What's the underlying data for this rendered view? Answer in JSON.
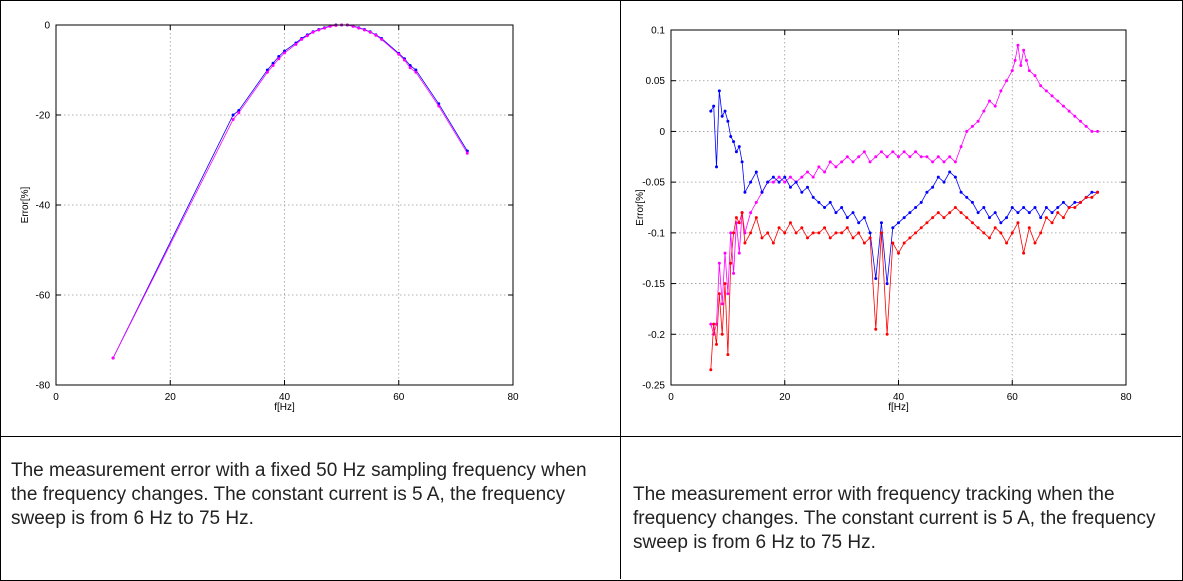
{
  "charts": [
    {
      "caption": "The measurement error with a fixed 50 Hz sampling frequency when the frequency changes. The constant current is 5 A, the frequency sweep is from 6 Hz to 75 Hz."
    },
    {
      "caption": "The measurement error with frequency tracking when the frequency changes. The constant current is 5 A, the frequency sweep is from 6 Hz to 75 Hz."
    }
  ],
  "colors": {
    "blue": "#0000ff",
    "magenta": "#ff00ff",
    "red": "#ff0000"
  },
  "chart_data": [
    {
      "type": "line",
      "xlabel": "f[Hz]",
      "ylabel": "Error[%]",
      "xlim": [
        0,
        80
      ],
      "ylim": [
        -80,
        0
      ],
      "xticks": [
        0,
        20,
        40,
        60,
        80
      ],
      "yticks": [
        0,
        -20,
        -40,
        -60,
        -80
      ],
      "grid": true,
      "series": [
        {
          "color": "#0000ff",
          "x": [
            10,
            31,
            32,
            37,
            38,
            39,
            40,
            42,
            43,
            44,
            45,
            46,
            47,
            48,
            49,
            50,
            51,
            52,
            53,
            54,
            55,
            56,
            57,
            60,
            61,
            62,
            63,
            67,
            72
          ],
          "y": [
            -74,
            -20,
            -19,
            -10,
            -8.5,
            -7,
            -5.8,
            -4,
            -3,
            -2.2,
            -1.5,
            -1,
            -0.6,
            -0.2,
            0,
            0,
            0,
            -0.2,
            -0.6,
            -1,
            -1.5,
            -2.2,
            -3,
            -6.3,
            -7.5,
            -9,
            -10,
            -17.5,
            -28
          ]
        },
        {
          "color": "#ff00ff",
          "x": [
            10,
            31,
            32,
            37,
            38,
            39,
            40,
            42,
            43,
            44,
            45,
            46,
            47,
            48,
            49,
            50,
            51,
            52,
            53,
            54,
            55,
            56,
            57,
            60,
            61,
            62,
            63,
            67,
            72
          ],
          "y": [
            -74,
            -21,
            -19.5,
            -10.5,
            -9,
            -7.5,
            -6.2,
            -4.3,
            -3.2,
            -2.4,
            -1.6,
            -1.1,
            -0.7,
            -0.3,
            -0.1,
            0,
            0,
            -0.3,
            -0.7,
            -1.1,
            -1.6,
            -2.3,
            -3.2,
            -6.5,
            -7.8,
            -9.5,
            -10.5,
            -18,
            -28.5
          ]
        }
      ]
    },
    {
      "type": "line",
      "xlabel": "f[Hz]",
      "ylabel": "Error[%]",
      "xlim": [
        0,
        80
      ],
      "ylim": [
        -0.25,
        0.1
      ],
      "xticks": [
        0,
        20,
        40,
        60,
        80
      ],
      "yticks": [
        0.1,
        0.05,
        0,
        -0.05,
        -0.1,
        -0.15,
        -0.2,
        -0.25
      ],
      "ytick_labels": [
        "0.1",
        "0.05",
        "0",
        "-0.05",
        "-0.1",
        "-0.15",
        "-0.2",
        "-0.25"
      ],
      "grid": true,
      "series": [
        {
          "color": "#ff00ff",
          "x": [
            7,
            7.5,
            8,
            8.5,
            9,
            9.5,
            10,
            10.5,
            11,
            11.5,
            12,
            12.5,
            13,
            14,
            15,
            16,
            17,
            18,
            19,
            20,
            21,
            22,
            23,
            24,
            25,
            26,
            27,
            28,
            29,
            30,
            31,
            32,
            33,
            34,
            35,
            36,
            37,
            38,
            39,
            40,
            41,
            42,
            43,
            44,
            45,
            46,
            47,
            48,
            49,
            50,
            51,
            52,
            53,
            54,
            55,
            56,
            57,
            58,
            59,
            60,
            60.5,
            61,
            61.5,
            62,
            62.5,
            63,
            64,
            65,
            66,
            67,
            68,
            69,
            70,
            71,
            72,
            73,
            74,
            75
          ],
          "y": [
            -0.19,
            -0.2,
            -0.19,
            -0.13,
            -0.17,
            -0.12,
            -0.16,
            -0.1,
            -0.14,
            -0.09,
            -0.12,
            -0.08,
            -0.1,
            -0.08,
            -0.07,
            -0.06,
            -0.05,
            -0.05,
            -0.045,
            -0.05,
            -0.045,
            -0.05,
            -0.045,
            -0.04,
            -0.045,
            -0.035,
            -0.04,
            -0.03,
            -0.035,
            -0.03,
            -0.025,
            -0.03,
            -0.025,
            -0.02,
            -0.03,
            -0.025,
            -0.02,
            -0.025,
            -0.02,
            -0.025,
            -0.02,
            -0.025,
            -0.02,
            -0.025,
            -0.025,
            -0.03,
            -0.025,
            -0.03,
            -0.025,
            -0.03,
            -0.015,
            0,
            0.005,
            0.01,
            0.02,
            0.03,
            0.025,
            0.04,
            0.05,
            0.06,
            0.07,
            0.085,
            0.065,
            0.08,
            0.07,
            0.06,
            0.055,
            0.045,
            0.04,
            0.035,
            0.03,
            0.025,
            0.02,
            0.015,
            0.01,
            0.005,
            0,
            0
          ]
        },
        {
          "color": "#0000ff",
          "x": [
            7,
            7.5,
            8,
            8.5,
            9,
            9.5,
            10,
            10.5,
            11,
            11.5,
            12,
            12.5,
            13,
            14,
            15,
            16,
            17,
            18,
            19,
            20,
            21,
            22,
            23,
            24,
            25,
            26,
            27,
            28,
            29,
            30,
            31,
            32,
            33,
            34,
            35,
            36,
            37,
            38,
            39,
            40,
            41,
            42,
            43,
            44,
            45,
            46,
            47,
            48,
            49,
            50,
            51,
            52,
            53,
            54,
            55,
            56,
            57,
            58,
            59,
            60,
            61,
            62,
            63,
            64,
            65,
            66,
            67,
            68,
            69,
            70,
            71,
            72,
            73,
            74,
            75
          ],
          "y": [
            0.02,
            0.025,
            -0.035,
            0.04,
            0.015,
            0.02,
            0.01,
            -0.005,
            -0.01,
            -0.02,
            -0.015,
            -0.03,
            -0.06,
            -0.05,
            -0.04,
            -0.06,
            -0.05,
            -0.045,
            -0.05,
            -0.045,
            -0.055,
            -0.05,
            -0.06,
            -0.055,
            -0.065,
            -0.07,
            -0.075,
            -0.07,
            -0.08,
            -0.075,
            -0.085,
            -0.08,
            -0.09,
            -0.085,
            -0.1,
            -0.145,
            -0.09,
            -0.15,
            -0.095,
            -0.09,
            -0.085,
            -0.08,
            -0.075,
            -0.07,
            -0.06,
            -0.055,
            -0.045,
            -0.05,
            -0.04,
            -0.045,
            -0.06,
            -0.065,
            -0.07,
            -0.08,
            -0.075,
            -0.085,
            -0.08,
            -0.09,
            -0.085,
            -0.075,
            -0.08,
            -0.075,
            -0.08,
            -0.075,
            -0.085,
            -0.075,
            -0.08,
            -0.075,
            -0.07,
            -0.075,
            -0.07,
            -0.07,
            -0.065,
            -0.06,
            -0.06
          ]
        },
        {
          "color": "#ff0000",
          "x": [
            7,
            7.5,
            8,
            8.5,
            9,
            9.5,
            10,
            10.5,
            11,
            11.5,
            12,
            12.5,
            13,
            14,
            15,
            16,
            17,
            18,
            19,
            20,
            21,
            22,
            23,
            24,
            25,
            26,
            27,
            28,
            29,
            30,
            31,
            32,
            33,
            34,
            35,
            36,
            37,
            38,
            39,
            40,
            41,
            42,
            43,
            44,
            45,
            46,
            47,
            48,
            49,
            50,
            51,
            52,
            53,
            54,
            55,
            56,
            57,
            58,
            59,
            60,
            61,
            62,
            63,
            64,
            65,
            66,
            67,
            68,
            69,
            70,
            71,
            72,
            73,
            74,
            75
          ],
          "y": [
            -0.235,
            -0.19,
            -0.21,
            -0.16,
            -0.2,
            -0.15,
            -0.22,
            -0.13,
            -0.1,
            -0.085,
            -0.09,
            -0.08,
            -0.11,
            -0.1,
            -0.085,
            -0.105,
            -0.1,
            -0.11,
            -0.095,
            -0.1,
            -0.09,
            -0.1,
            -0.095,
            -0.105,
            -0.1,
            -0.1,
            -0.095,
            -0.105,
            -0.1,
            -0.1,
            -0.095,
            -0.105,
            -0.1,
            -0.11,
            -0.105,
            -0.195,
            -0.1,
            -0.2,
            -0.11,
            -0.12,
            -0.11,
            -0.105,
            -0.1,
            -0.095,
            -0.09,
            -0.085,
            -0.08,
            -0.085,
            -0.08,
            -0.075,
            -0.08,
            -0.085,
            -0.09,
            -0.095,
            -0.1,
            -0.105,
            -0.095,
            -0.1,
            -0.11,
            -0.1,
            -0.09,
            -0.12,
            -0.095,
            -0.11,
            -0.1,
            -0.085,
            -0.09,
            -0.08,
            -0.085,
            -0.075,
            -0.075,
            -0.07,
            -0.065,
            -0.065,
            -0.06
          ]
        }
      ]
    }
  ]
}
